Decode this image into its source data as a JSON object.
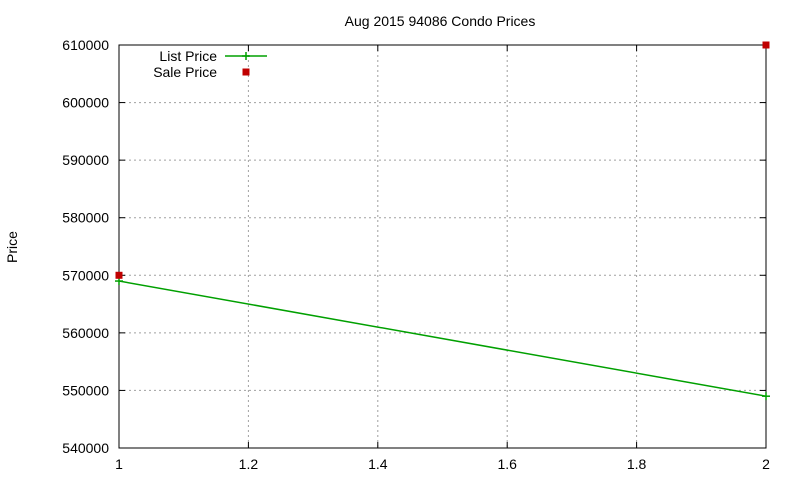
{
  "chart_data": {
    "type": "line",
    "title": "Aug 2015 94086 Condo Prices",
    "xlabel": "",
    "ylabel": "Price",
    "xlim": [
      1,
      2
    ],
    "ylim": [
      540000,
      610000
    ],
    "x_ticks": [
      1,
      1.2,
      1.4,
      1.6,
      1.8,
      2
    ],
    "x_tick_labels": [
      "1",
      "1.2",
      "1.4",
      "1.6",
      "1.8",
      "2"
    ],
    "y_ticks": [
      540000,
      550000,
      560000,
      570000,
      580000,
      590000,
      600000,
      610000
    ],
    "y_tick_labels": [
      "540000",
      "550000",
      "560000",
      "570000",
      "580000",
      "590000",
      "600000",
      "610000"
    ],
    "grid": true,
    "legend_position": "top-left",
    "series": [
      {
        "name": "List Price",
        "style": "line-with-cross-markers",
        "color": "#00a000",
        "x": [
          1,
          2
        ],
        "y": [
          569000,
          549000
        ]
      },
      {
        "name": "Sale Price",
        "style": "square-markers",
        "color": "#c00000",
        "x": [
          1,
          2
        ],
        "y": [
          570000,
          610000
        ]
      }
    ]
  }
}
